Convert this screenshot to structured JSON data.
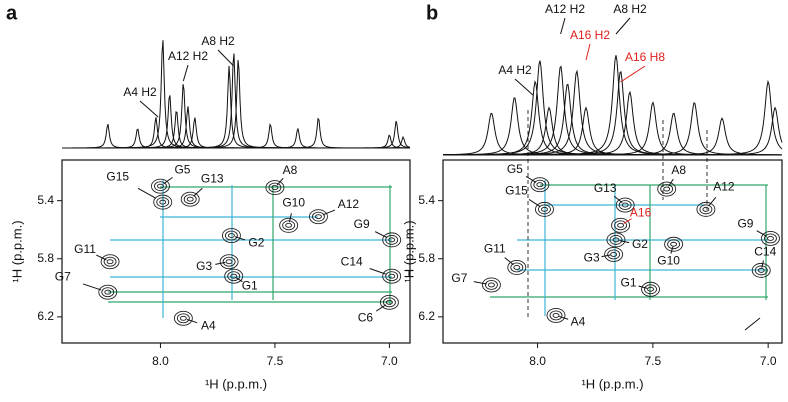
{
  "chart_data": [
    {
      "type": "nmr",
      "panel_label": "a",
      "xlabel": "¹H (p.p.m.)",
      "ylabel": "¹H (p.p.m.)",
      "xlim": [
        8.43,
        6.91
      ],
      "ylim": [
        5.12,
        6.38
      ],
      "xticks": [
        {
          "value": 8,
          "label": "8.0"
        },
        7.5,
        {
          "value": 7,
          "label": "7.0"
        }
      ],
      "yticks": [
        5.4,
        5.8,
        6.2
      ],
      "spectrum": {
        "x": [
          8.23,
          8.1,
          8.02,
          7.99,
          7.96,
          7.93,
          7.9,
          7.88,
          7.85,
          7.7,
          7.68,
          7.66,
          7.52,
          7.4,
          7.31,
          7.0,
          6.97,
          6.94
        ],
        "values": [
          22,
          18,
          28,
          100,
          50,
          35,
          60,
          38,
          28,
          75,
          88,
          82,
          22,
          18,
          28,
          12,
          25,
          10
        ]
      },
      "spectrum_labels": [
        {
          "text": "A4 H2",
          "x": 8.01,
          "color": "#111111"
        },
        {
          "text": "A12 H2",
          "x": 7.9,
          "color": "#111111"
        },
        {
          "text": "A8 H2",
          "x": 7.68,
          "color": "#111111"
        }
      ],
      "peaks": [
        {
          "label": "G5",
          "x": 8.0,
          "y": 5.3,
          "color": "#111111"
        },
        {
          "label": "G15",
          "x": 7.99,
          "y": 5.41,
          "color": "#111111"
        },
        {
          "label": "G13",
          "x": 7.87,
          "y": 5.39,
          "color": "#111111"
        },
        {
          "label": "A8",
          "x": 7.5,
          "y": 5.31,
          "color": "#111111"
        },
        {
          "label": "G10",
          "x": 7.44,
          "y": 5.57,
          "color": "#111111"
        },
        {
          "label": "A12",
          "x": 7.31,
          "y": 5.51,
          "color": "#111111"
        },
        {
          "label": "G9",
          "x": 6.99,
          "y": 5.67,
          "color": "#111111"
        },
        {
          "label": "G2",
          "x": 7.69,
          "y": 5.64,
          "color": "#111111"
        },
        {
          "label": "G11",
          "x": 8.22,
          "y": 5.82,
          "color": "#111111"
        },
        {
          "label": "G3",
          "x": 7.7,
          "y": 5.82,
          "color": "#111111"
        },
        {
          "label": "C14",
          "x": 6.99,
          "y": 5.92,
          "color": "#111111"
        },
        {
          "label": "G1",
          "x": 7.68,
          "y": 5.92,
          "color": "#111111"
        },
        {
          "label": "G7",
          "x": 8.23,
          "y": 6.03,
          "color": "#111111"
        },
        {
          "label": "A4",
          "x": 7.9,
          "y": 6.21,
          "color": "#111111"
        },
        {
          "label": "C6",
          "x": 7.0,
          "y": 6.1,
          "color": "#111111"
        }
      ]
    },
    {
      "type": "nmr",
      "panel_label": "b",
      "xlabel": "¹H (p.p.m.)",
      "ylabel": "¹H (p.p.m.)",
      "xlim": [
        8.41,
        6.94
      ],
      "ylim": [
        5.12,
        6.38
      ],
      "xticks": [
        {
          "value": 8,
          "label": "8.0"
        },
        7.5,
        {
          "value": 7,
          "label": "7.0"
        }
      ],
      "yticks": [
        5.4,
        5.8,
        6.2
      ],
      "spectrum": {
        "x": [
          8.2,
          8.1,
          8.01,
          7.99,
          7.95,
          7.9,
          7.87,
          7.83,
          7.79,
          7.66,
          7.64,
          7.6,
          7.5,
          7.41,
          7.32,
          7.2,
          7.0,
          6.97
        ],
        "values": [
          40,
          55,
          70,
          90,
          45,
          85,
          68,
          80,
          45,
          95,
          80,
          60,
          50,
          40,
          50,
          35,
          70,
          45
        ]
      },
      "spectrum_labels": [
        {
          "text": "A4 H2",
          "x": 8.02,
          "color": "#111111"
        },
        {
          "text": "A12 H2",
          "x": 7.9,
          "color": "#111111"
        },
        {
          "text": "A16 H2",
          "x": 7.79,
          "color": "#e0201c"
        },
        {
          "text": "A8 H2",
          "x": 7.66,
          "color": "#111111"
        },
        {
          "text": "A16 H8",
          "x": 7.64,
          "color": "#e0201c"
        }
      ],
      "peaks": [
        {
          "label": "G5",
          "x": 7.99,
          "y": 5.29,
          "color": "#111111"
        },
        {
          "label": "G15",
          "x": 7.97,
          "y": 5.46,
          "color": "#111111"
        },
        {
          "label": "G13",
          "x": 7.62,
          "y": 5.43,
          "color": "#111111"
        },
        {
          "label": "A8",
          "x": 7.44,
          "y": 5.32,
          "color": "#111111"
        },
        {
          "label": "A16",
          "x": 7.64,
          "y": 5.57,
          "color": "#e0201c"
        },
        {
          "label": "A12",
          "x": 7.27,
          "y": 5.46,
          "color": "#111111"
        },
        {
          "label": "G9",
          "x": 6.99,
          "y": 5.66,
          "color": "#111111"
        },
        {
          "label": "G2",
          "x": 7.66,
          "y": 5.67,
          "color": "#111111"
        },
        {
          "label": "G11",
          "x": 8.09,
          "y": 5.86,
          "color": "#111111"
        },
        {
          "label": "G3",
          "x": 7.67,
          "y": 5.77,
          "color": "#111111"
        },
        {
          "label": "G10",
          "x": 7.41,
          "y": 5.7,
          "color": "#111111"
        },
        {
          "label": "C14",
          "x": 7.03,
          "y": 5.88,
          "color": "#111111"
        },
        {
          "label": "G1",
          "x": 7.51,
          "y": 6.01,
          "color": "#111111"
        },
        {
          "label": "G7",
          "x": 8.2,
          "y": 5.98,
          "color": "#111111"
        },
        {
          "label": "A4",
          "x": 7.92,
          "y": 6.19,
          "color": "#111111"
        }
      ]
    }
  ]
}
